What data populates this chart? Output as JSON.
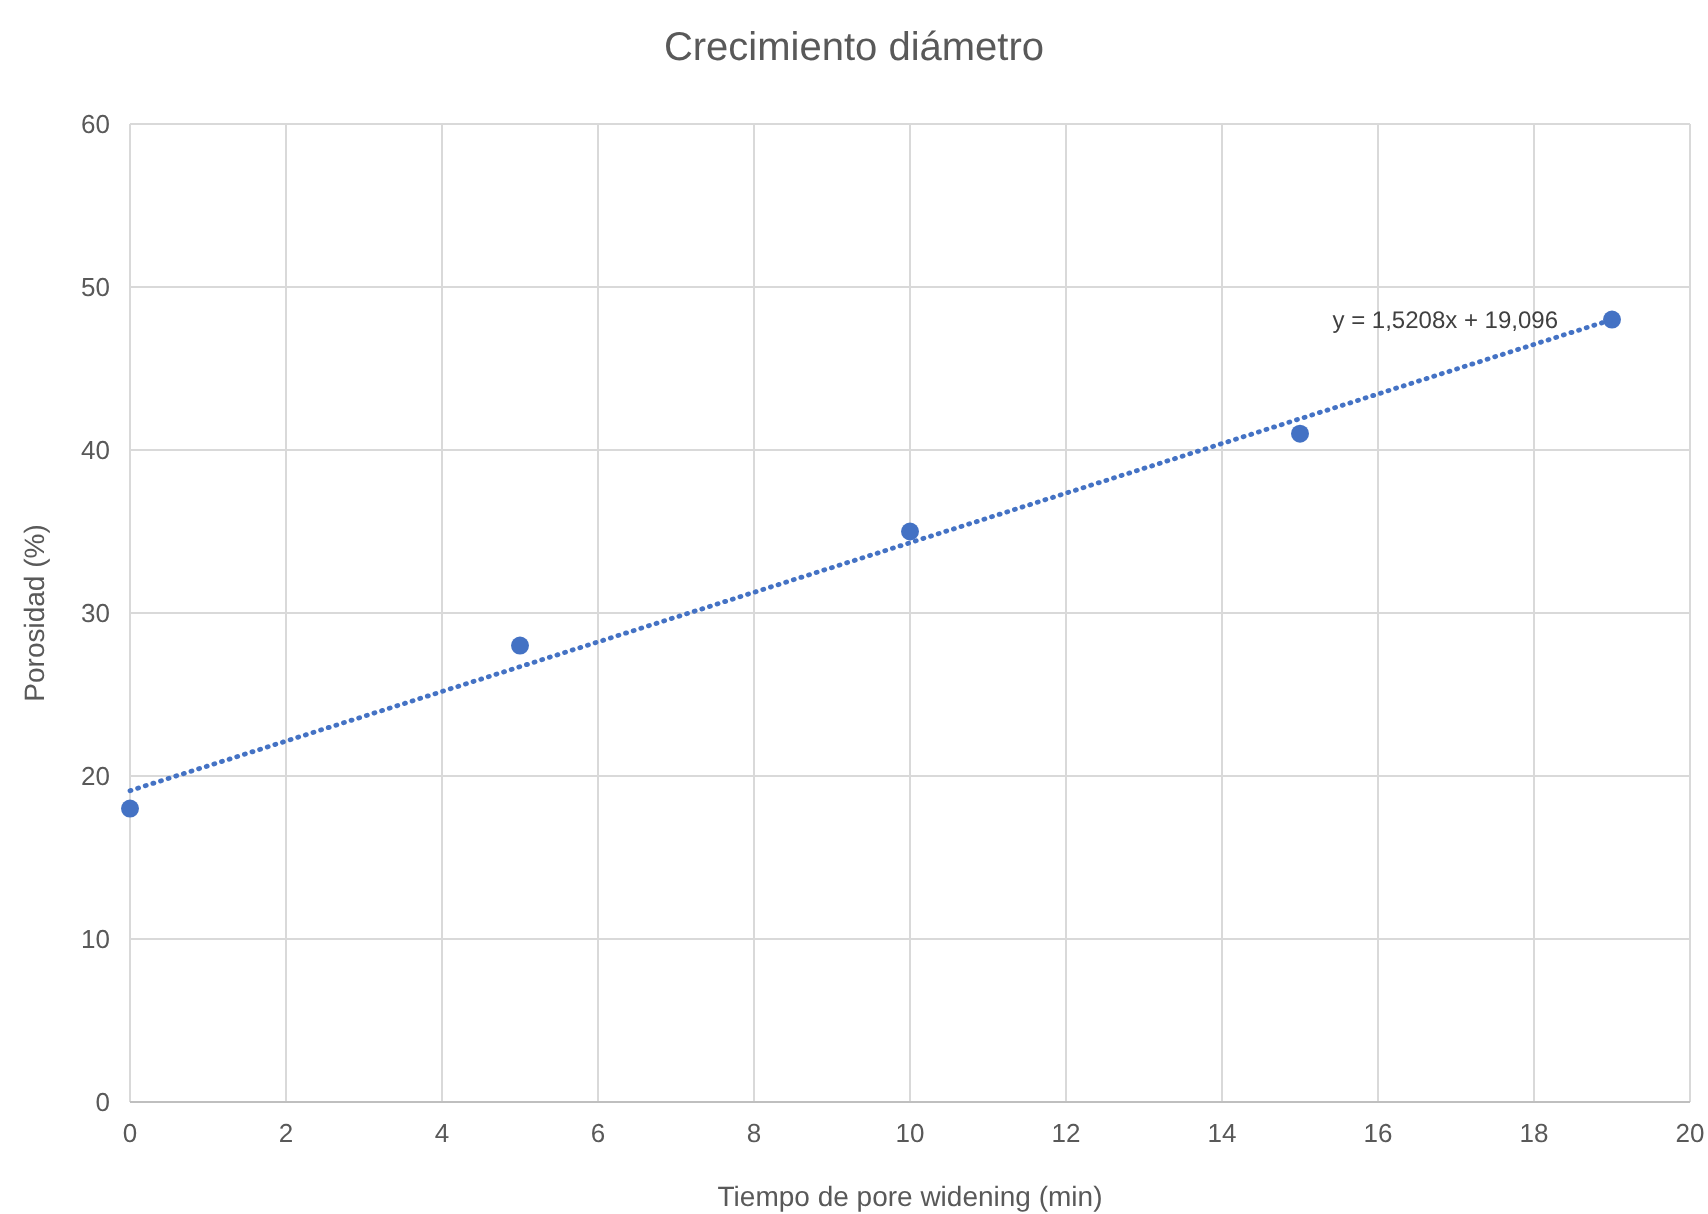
{
  "chart_data": {
    "type": "scatter",
    "title": "Crecimiento diámetro",
    "xlabel": "Tiempo de pore widening (min)",
    "ylabel": "Porosidad (%)",
    "xlim": [
      0,
      20
    ],
    "xticks": [
      0,
      2,
      4,
      6,
      8,
      10,
      12,
      14,
      16,
      18,
      20
    ],
    "ylim": [
      0,
      60
    ],
    "yticks": [
      0,
      10,
      20,
      30,
      40,
      50,
      60
    ],
    "grid": true,
    "series": [
      {
        "color": "#4472c4",
        "x": [
          0,
          5,
          10,
          15,
          19
        ],
        "values": [
          18,
          28,
          35,
          41,
          48
        ],
        "marker": "circle"
      },
      {
        "type": "line",
        "color": "#4472c4",
        "x": [
          0,
          19
        ],
        "values": [
          19.1,
          48.0
        ],
        "line_style": "dotted",
        "marker": "none"
      }
    ],
    "annotations": [
      "y = 1,5208x + 19,096"
    ]
  }
}
